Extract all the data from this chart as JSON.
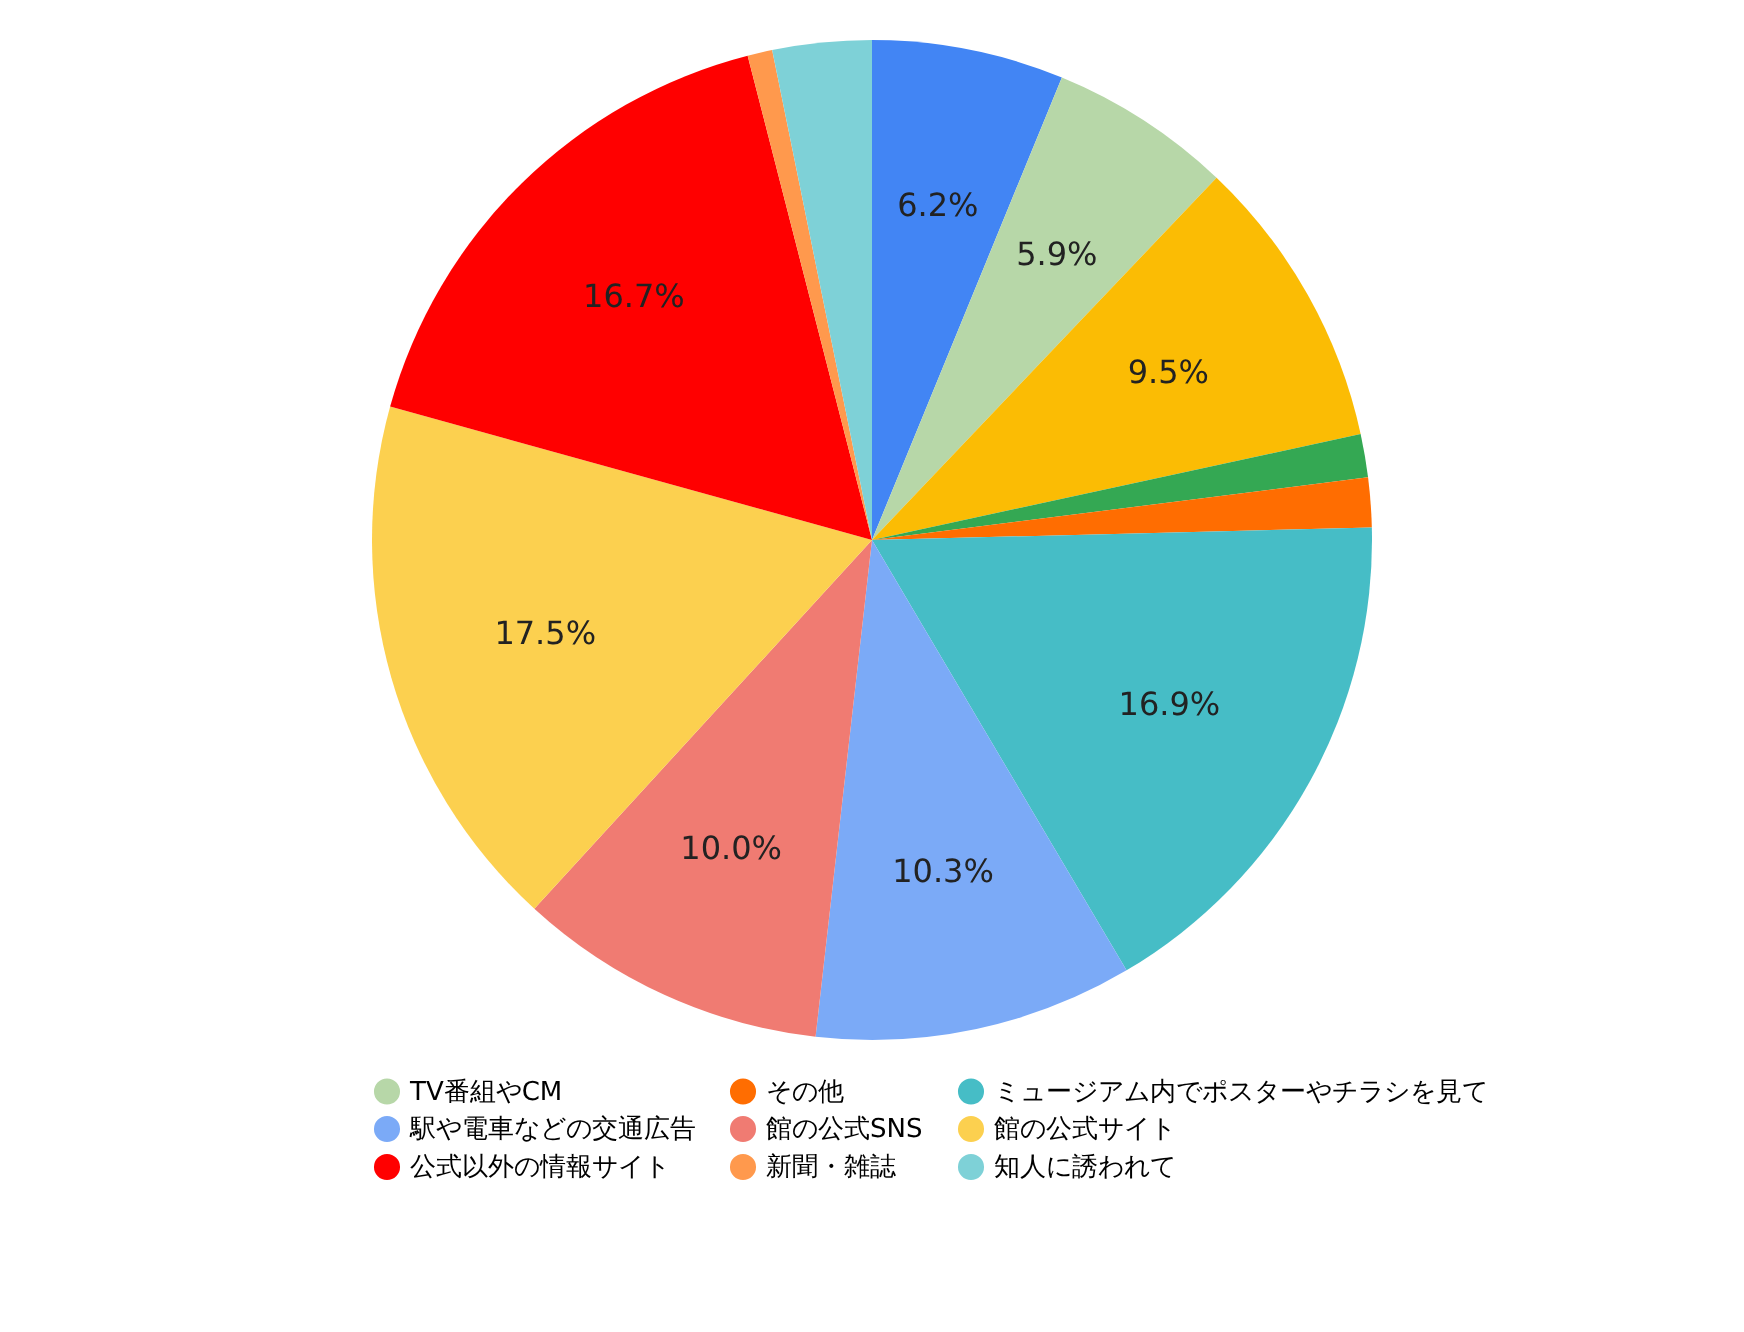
{
  "chart_data": {
    "type": "pie",
    "categories": [
      null,
      "TV番組やCM",
      null,
      null,
      "その他",
      "ミュージアム内でポスターやチラシを見て",
      "駅や電車などの交通広告",
      "館の公式SNS",
      "館の公式サイト",
      "公式以外の情報サイト",
      "新聞・雑誌",
      "知人に誘われて"
    ],
    "values": [
      6.2,
      5.9,
      9.5,
      1.4,
      1.6,
      16.9,
      10.3,
      10.0,
      17.5,
      16.7,
      0.8,
      3.2
    ],
    "value_labels": [
      "6.2%",
      "5.9%",
      "9.5%",
      null,
      null,
      "16.9%",
      "10.3%",
      "10.0%",
      "17.5%",
      "16.7%",
      null,
      null
    ],
    "colors": [
      "#4285f4",
      "#b7d7a8",
      "#fbbc04",
      "#34a853",
      "#ff6d01",
      "#46bdc6",
      "#7baaf7",
      "#f07b72",
      "#fcd04f",
      "#ff0000",
      "#ff994d",
      "#7ed1d7"
    ],
    "legend": "bottom"
  }
}
